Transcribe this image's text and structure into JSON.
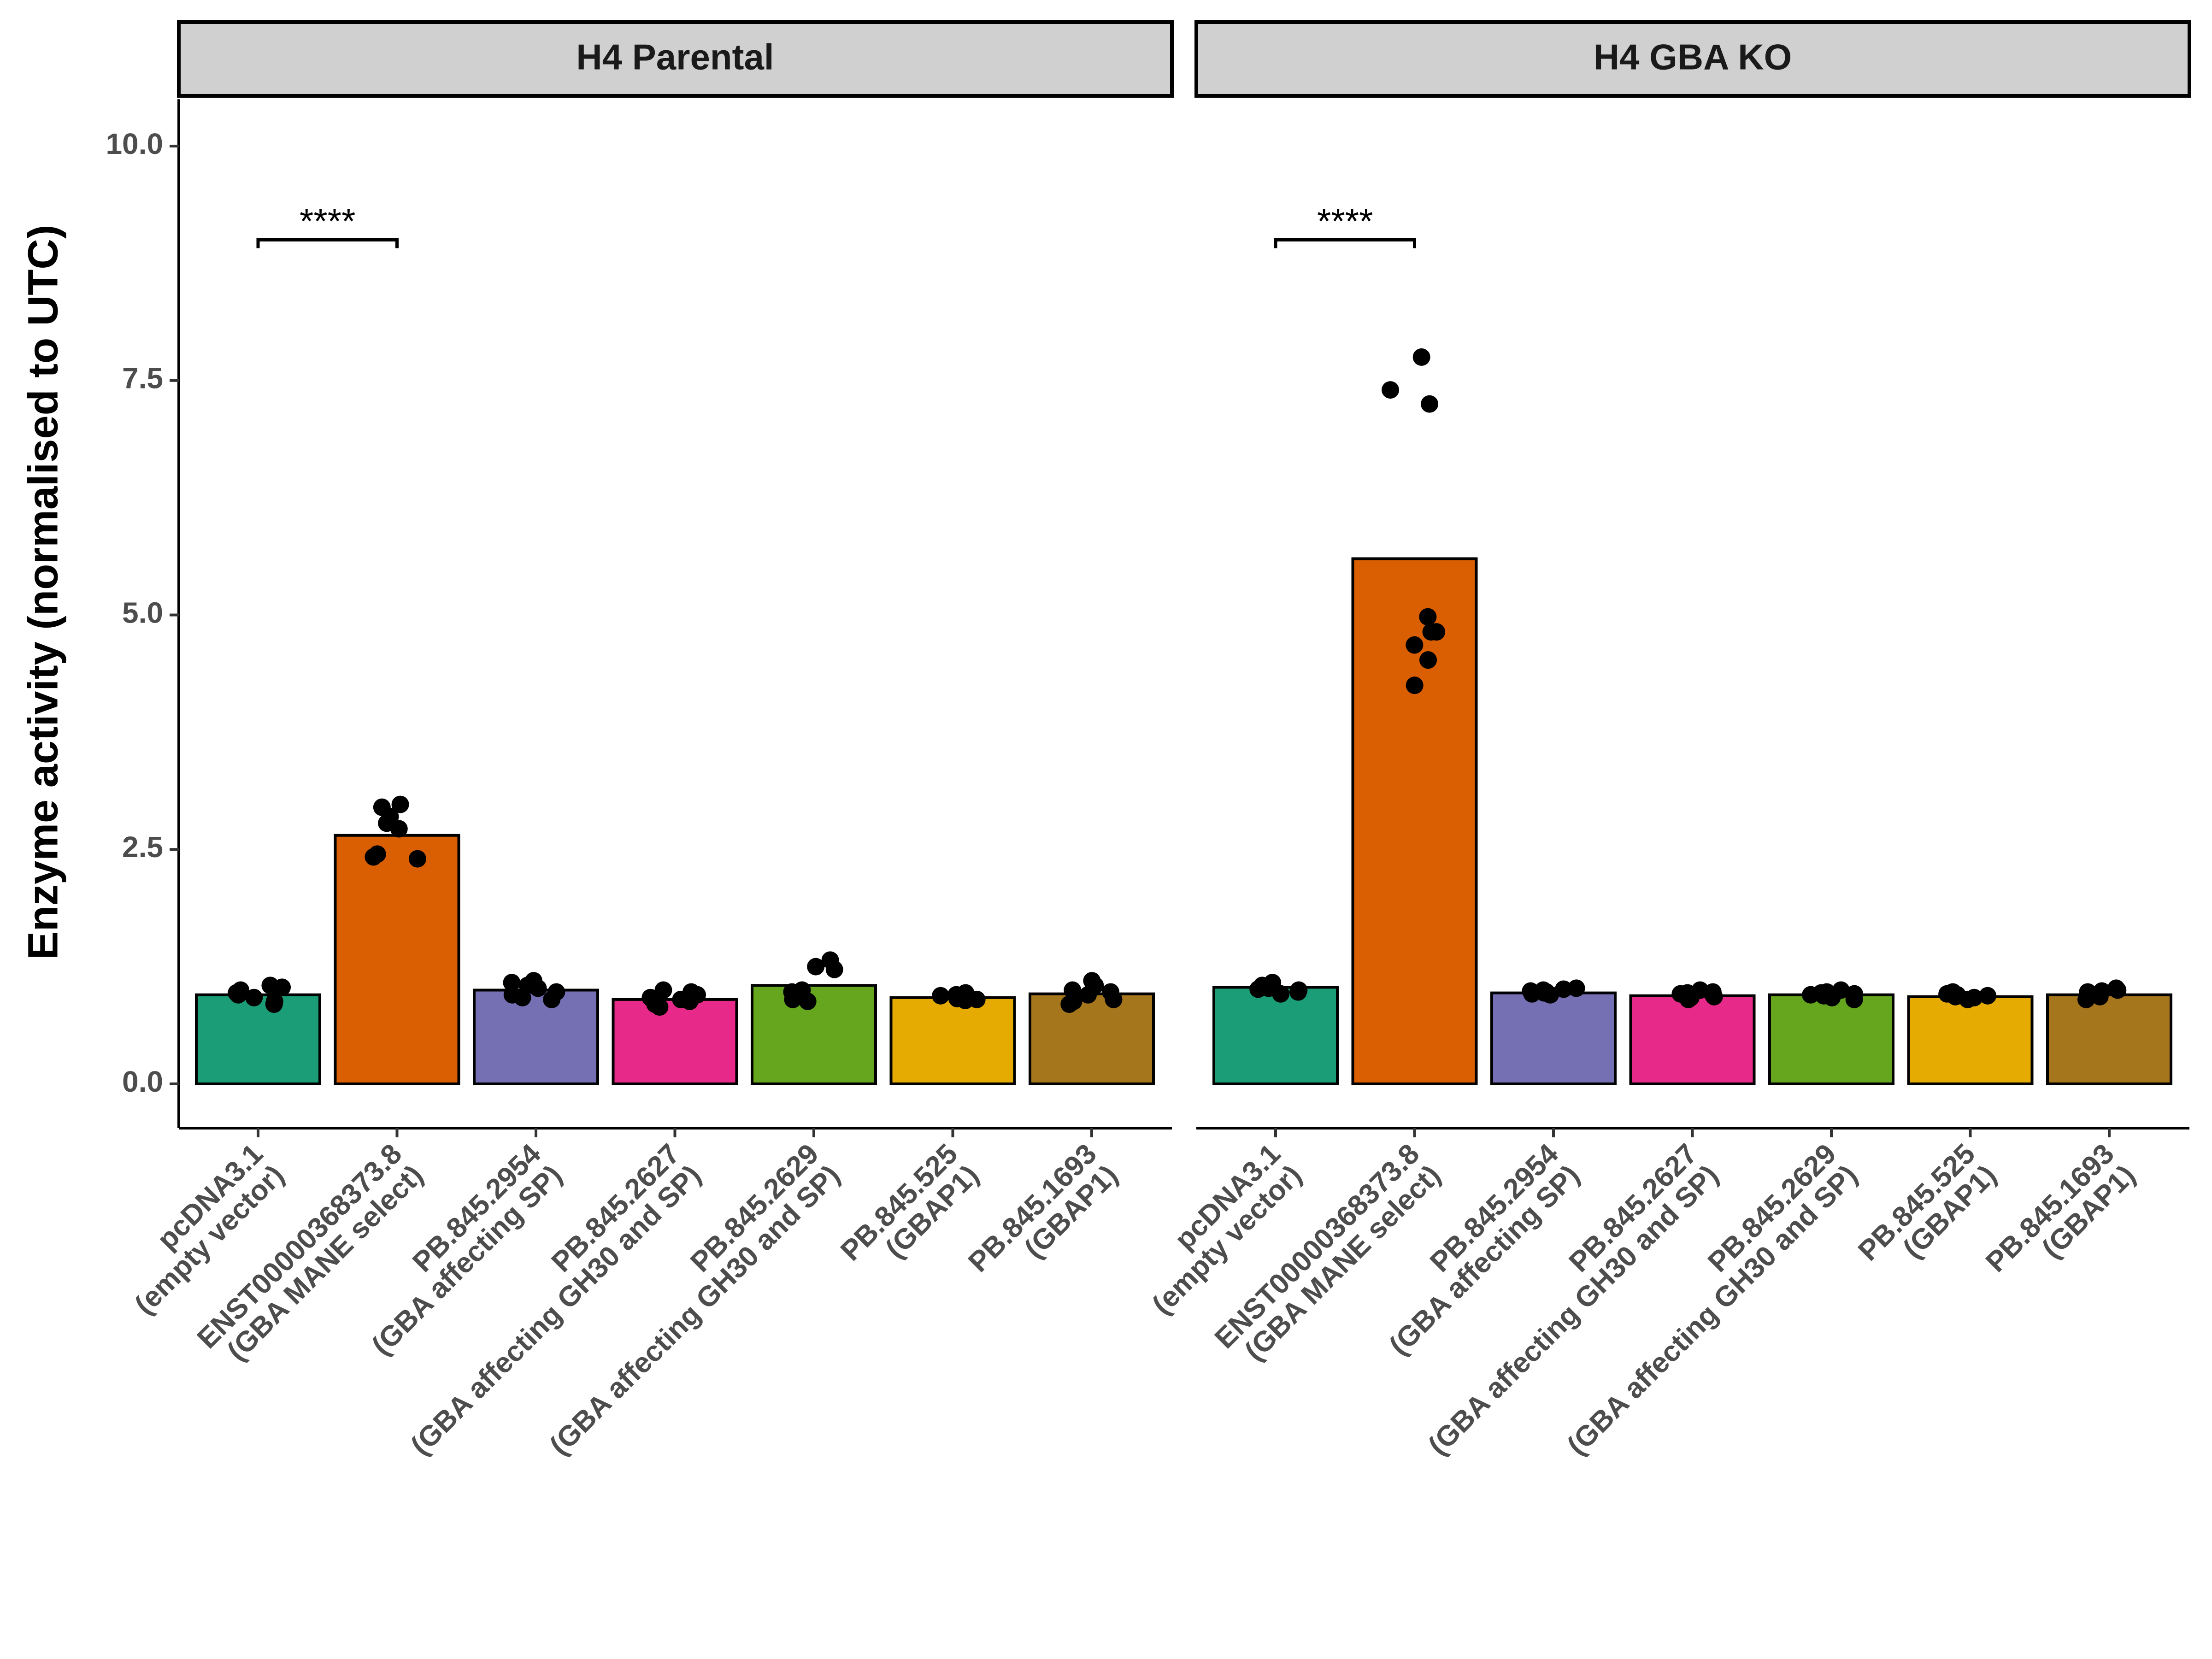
{
  "chart_data": {
    "type": "bar",
    "ylabel": "Enzyme activity (normalised to UTC)",
    "xlabel": "",
    "ylim": [
      -0.45,
      10.5
    ],
    "yticks": [
      0.0,
      2.5,
      5.0,
      7.5,
      10.0
    ],
    "ytick_labels": [
      "0.0",
      "2.5",
      "5.0",
      "7.5",
      "10.0"
    ],
    "grid": false,
    "legend": "none",
    "categories": [
      [
        "pcDNA3.1",
        "(empty vector)"
      ],
      [
        "ENST00000368373.8",
        "(GBA MANE select)"
      ],
      [
        "PB.845.2954",
        "(GBA affecting SP)"
      ],
      [
        "PB.845.2627",
        "(GBA affecting GH30 and SP)"
      ],
      [
        "PB.845.2629",
        "(GBA affecting GH30 and SP)"
      ],
      [
        "PB.845.525",
        "(GBAP1)"
      ],
      [
        "PB.845.1693",
        "(GBAP1)"
      ]
    ],
    "colors": [
      "#1B9E77",
      "#D95F02",
      "#7570B3",
      "#E7298A",
      "#66A61E",
      "#E6AB02",
      "#A6761D"
    ],
    "panels": [
      {
        "title": "H4 Parental",
        "values": [
          0.95,
          2.65,
          1.0,
          0.9,
          1.05,
          0.92,
          0.96
        ],
        "points": [
          [
            1.05,
            0.97,
            0.92,
            0.88,
            1.0,
            0.85,
            0.95,
            1.03
          ],
          [
            2.98,
            2.85,
            2.78,
            2.72,
            2.45,
            2.42,
            2.4,
            2.95
          ],
          [
            1.1,
            1.05,
            0.98,
            0.95,
            0.9,
            1.08,
            1.02,
            0.92
          ],
          [
            1.0,
            0.95,
            0.9,
            0.85,
            0.82,
            0.98,
            0.88,
            0.92
          ],
          [
            1.32,
            1.25,
            1.22,
            1.0,
            0.95,
            0.9,
            0.88,
            0.98
          ],
          [
            0.97,
            0.95,
            0.93,
            0.9,
            0.92,
            0.94,
            0.89,
            0.91
          ],
          [
            1.1,
            1.05,
            1.0,
            0.95,
            0.9,
            0.88,
            0.85,
            0.98
          ]
        ],
        "significance": {
          "from": 0,
          "to": 1,
          "y": 9.0,
          "label": "****"
        }
      },
      {
        "title": "H4 GBA KO",
        "values": [
          1.03,
          5.6,
          0.97,
          0.94,
          0.95,
          0.93,
          0.95
        ],
        "points": [
          [
            1.08,
            1.05,
            1.02,
            0.98,
            1.0,
            1.04,
            0.96,
            1.01
          ],
          [
            7.75,
            7.4,
            7.25,
            4.98,
            4.82,
            4.82,
            4.68,
            4.52,
            4.25
          ],
          [
            1.02,
            1.0,
            0.98,
            0.96,
            0.95,
            0.99,
            1.01,
            0.97
          ],
          [
            1.0,
            0.97,
            0.95,
            0.92,
            0.9,
            0.98,
            0.93,
            0.96
          ],
          [
            1.0,
            0.98,
            0.96,
            0.94,
            0.92,
            0.9,
            0.97,
            0.95
          ],
          [
            0.98,
            0.96,
            0.95,
            0.93,
            0.92,
            0.9,
            0.97,
            0.94
          ],
          [
            1.02,
            1.0,
            0.98,
            0.95,
            0.93,
            0.9,
            0.96,
            0.99
          ]
        ],
        "significance": {
          "from": 0,
          "to": 1,
          "y": 9.0,
          "label": "****"
        }
      }
    ]
  }
}
